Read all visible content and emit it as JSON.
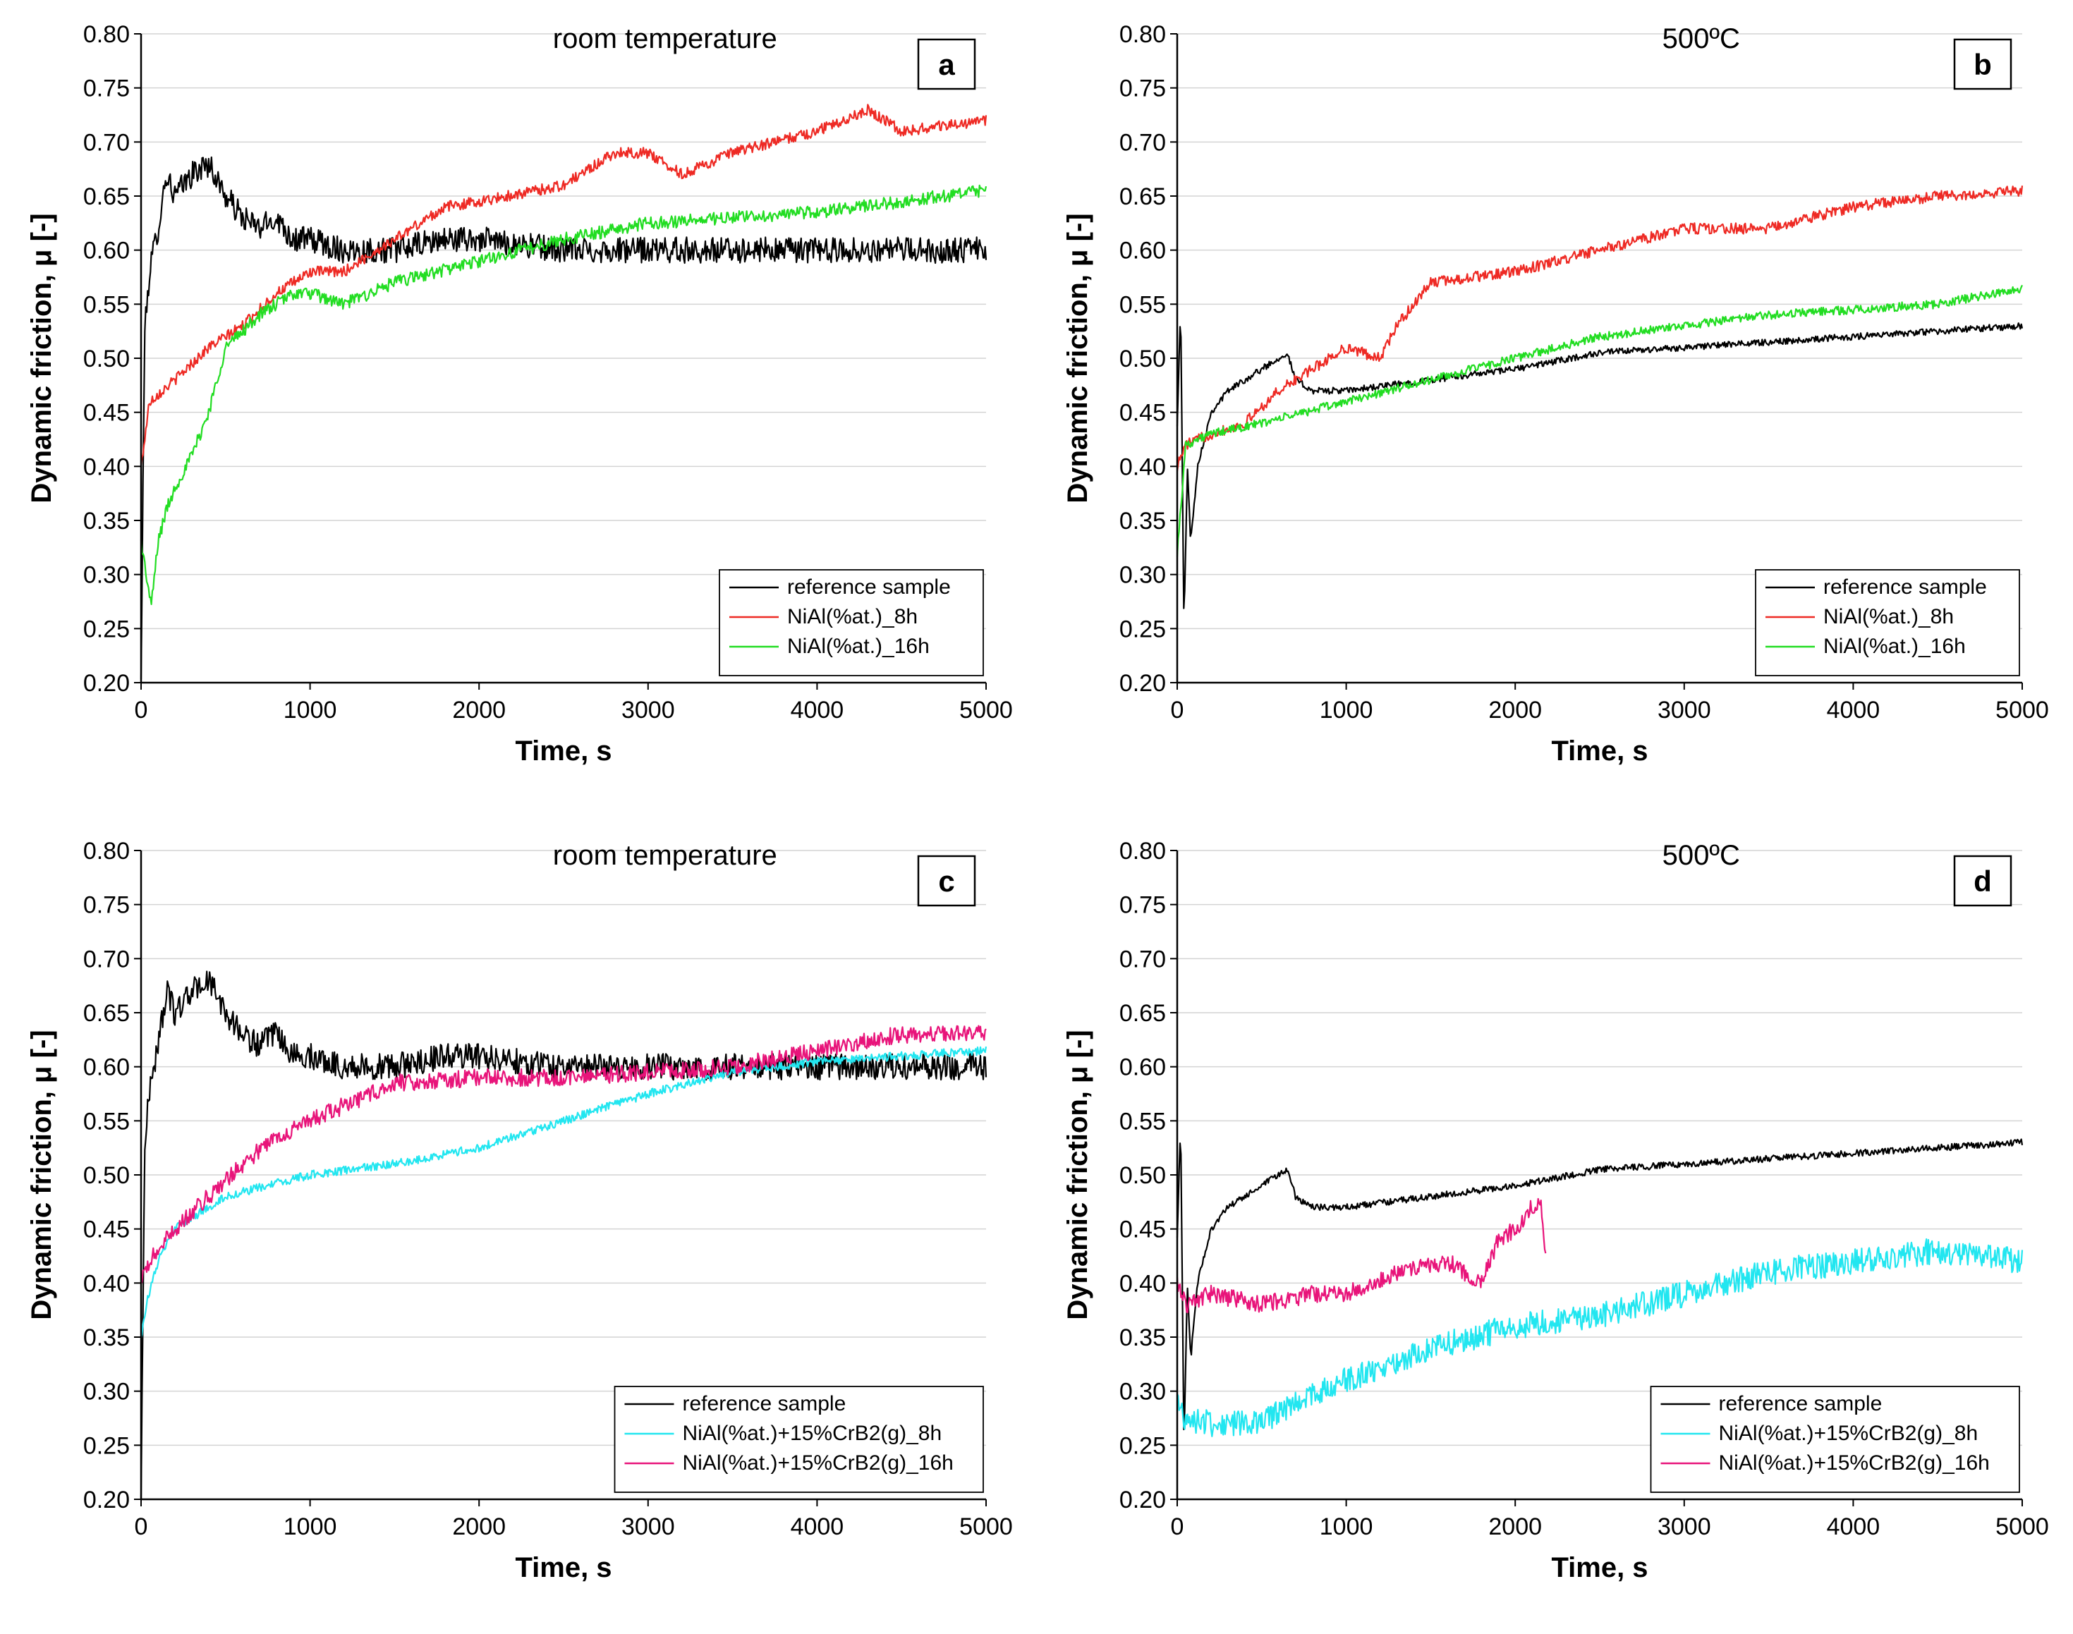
{
  "chart_data": [
    {
      "type": "line",
      "panel": "a",
      "title": "room temperature",
      "xlabel": "Time, s",
      "ylabel": "Dynamic friction, μ [-]",
      "xlim": [
        0,
        5000
      ],
      "ylim": [
        0.2,
        0.8
      ],
      "xticks": [
        "0",
        "1000",
        "2000",
        "3000",
        "4000",
        "5000"
      ],
      "yticks": [
        "0.20",
        "0.25",
        "0.30",
        "0.35",
        "0.40",
        "0.45",
        "0.50",
        "0.55",
        "0.60",
        "0.65",
        "0.70",
        "0.75",
        "0.80"
      ],
      "grid": "horizontal",
      "legend_position": "bottom-right",
      "series": [
        {
          "name": "reference sample",
          "color": "#000000",
          "noise": 0.012,
          "x": [
            0,
            20,
            50,
            100,
            150,
            200,
            300,
            400,
            500,
            600,
            700,
            800,
            900,
            1000,
            1200,
            1500,
            1800,
            2000,
            2500,
            3000,
            3500,
            4000,
            4500,
            5000
          ],
          "y": [
            0.2,
            0.52,
            0.58,
            0.62,
            0.67,
            0.65,
            0.67,
            0.68,
            0.65,
            0.63,
            0.62,
            0.63,
            0.61,
            0.61,
            0.6,
            0.6,
            0.61,
            0.61,
            0.6,
            0.6,
            0.6,
            0.6,
            0.6,
            0.6
          ]
        },
        {
          "name": "NiAl(%at.)_8h",
          "color": "#ee2a24",
          "noise": 0.005,
          "x": [
            0,
            50,
            200,
            400,
            600,
            800,
            1000,
            1200,
            1500,
            1800,
            2000,
            2500,
            2800,
            3000,
            3200,
            3500,
            4000,
            4300,
            4500,
            5000
          ],
          "y": [
            0.4,
            0.46,
            0.48,
            0.51,
            0.53,
            0.56,
            0.58,
            0.58,
            0.61,
            0.64,
            0.645,
            0.66,
            0.69,
            0.69,
            0.67,
            0.69,
            0.71,
            0.73,
            0.71,
            0.72
          ]
        },
        {
          "name": "NiAl(%at.)_16h",
          "color": "#22dd22",
          "noise": 0.006,
          "x": [
            0,
            30,
            60,
            100,
            150,
            200,
            300,
            400,
            500,
            700,
            900,
            1000,
            1200,
            1500,
            2000,
            2500,
            3000,
            3500,
            4000,
            4500,
            5000
          ],
          "y": [
            0.33,
            0.3,
            0.27,
            0.33,
            0.36,
            0.38,
            0.41,
            0.45,
            0.51,
            0.54,
            0.56,
            0.56,
            0.55,
            0.57,
            0.59,
            0.61,
            0.625,
            0.63,
            0.635,
            0.645,
            0.655
          ]
        }
      ]
    },
    {
      "type": "line",
      "panel": "b",
      "title": "500ºC",
      "xlabel": "Time, s",
      "ylabel": "Dynamic friction, μ [-]",
      "xlim": [
        0,
        5000
      ],
      "ylim": [
        0.2,
        0.8
      ],
      "xticks": [
        "0",
        "1000",
        "2000",
        "3000",
        "4000",
        "5000"
      ],
      "yticks": [
        "0.20",
        "0.25",
        "0.30",
        "0.35",
        "0.40",
        "0.45",
        "0.50",
        "0.55",
        "0.60",
        "0.65",
        "0.70",
        "0.75",
        "0.80"
      ],
      "grid": "horizontal",
      "legend_position": "bottom-right",
      "series": [
        {
          "name": "reference sample",
          "color": "#000000",
          "noise": 0.003,
          "x": [
            0,
            20,
            40,
            60,
            80,
            120,
            200,
            300,
            400,
            500,
            600,
            650,
            700,
            800,
            1000,
            1500,
            2000,
            2500,
            3000,
            3500,
            4000,
            4500,
            5000
          ],
          "y": [
            0.44,
            0.55,
            0.25,
            0.4,
            0.33,
            0.4,
            0.45,
            0.47,
            0.48,
            0.49,
            0.5,
            0.505,
            0.48,
            0.47,
            0.47,
            0.48,
            0.49,
            0.505,
            0.51,
            0.515,
            0.52,
            0.525,
            0.53
          ]
        },
        {
          "name": "NiAl(%at.)_8h",
          "color": "#ee2a24",
          "noise": 0.005,
          "x": [
            0,
            50,
            200,
            400,
            600,
            800,
            1000,
            1200,
            1300,
            1500,
            2000,
            2500,
            3000,
            3500,
            4000,
            4500,
            5000
          ],
          "y": [
            0.4,
            0.42,
            0.43,
            0.44,
            0.47,
            0.49,
            0.51,
            0.5,
            0.53,
            0.57,
            0.58,
            0.6,
            0.62,
            0.62,
            0.64,
            0.65,
            0.655
          ]
        },
        {
          "name": "NiAl(%at.)_16h",
          "color": "#22dd22",
          "noise": 0.004,
          "x": [
            0,
            50,
            200,
            500,
            1000,
            1500,
            2000,
            2500,
            3000,
            3500,
            4000,
            4500,
            5000
          ],
          "y": [
            0.32,
            0.42,
            0.43,
            0.44,
            0.46,
            0.48,
            0.5,
            0.52,
            0.53,
            0.54,
            0.545,
            0.55,
            0.565
          ]
        }
      ]
    },
    {
      "type": "line",
      "panel": "c",
      "title": "room temperature",
      "xlabel": "Time, s",
      "ylabel": "Dynamic friction, μ [-]",
      "xlim": [
        0,
        5000
      ],
      "ylim": [
        0.2,
        0.8
      ],
      "xticks": [
        "0",
        "1000",
        "2000",
        "3000",
        "4000",
        "5000"
      ],
      "yticks": [
        "0.20",
        "0.25",
        "0.30",
        "0.35",
        "0.40",
        "0.45",
        "0.50",
        "0.55",
        "0.60",
        "0.65",
        "0.70",
        "0.75",
        "0.80"
      ],
      "grid": "horizontal",
      "legend_position": "bottom-right",
      "series": [
        {
          "name": "reference sample",
          "color": "#000000",
          "noise": 0.012,
          "x": [
            0,
            20,
            50,
            100,
            150,
            200,
            300,
            400,
            500,
            600,
            700,
            800,
            900,
            1000,
            1200,
            1500,
            1800,
            2000,
            2500,
            3000,
            3500,
            4000,
            4500,
            5000
          ],
          "y": [
            0.2,
            0.52,
            0.58,
            0.62,
            0.67,
            0.65,
            0.67,
            0.68,
            0.65,
            0.63,
            0.62,
            0.63,
            0.61,
            0.61,
            0.6,
            0.6,
            0.61,
            0.61,
            0.6,
            0.6,
            0.6,
            0.6,
            0.6,
            0.6
          ]
        },
        {
          "name": "NiAl(%at.)+15%CrB2(g)_8h",
          "color": "#22e6f0",
          "noise": 0.004,
          "x": [
            0,
            30,
            100,
            200,
            500,
            1000,
            1500,
            2000,
            2500,
            3000,
            3500,
            4000,
            4500,
            5000
          ],
          "y": [
            0.35,
            0.38,
            0.42,
            0.45,
            0.48,
            0.5,
            0.51,
            0.525,
            0.55,
            0.575,
            0.595,
            0.605,
            0.61,
            0.615
          ]
        },
        {
          "name": "NiAl(%at.)+15%CrB2(g)_16h",
          "color": "#e8147a",
          "noise": 0.008,
          "x": [
            0,
            50,
            200,
            400,
            600,
            800,
            1000,
            1500,
            2000,
            2500,
            3000,
            3500,
            4000,
            4500,
            5000
          ],
          "y": [
            0.4,
            0.42,
            0.45,
            0.48,
            0.51,
            0.535,
            0.55,
            0.585,
            0.59,
            0.59,
            0.595,
            0.6,
            0.615,
            0.63,
            0.63
          ]
        }
      ]
    },
    {
      "type": "line",
      "panel": "d",
      "title": "500ºC",
      "xlabel": "Time, s",
      "ylabel": "Dynamic friction, μ [-]",
      "xlim": [
        0,
        5000
      ],
      "ylim": [
        0.2,
        0.8
      ],
      "xticks": [
        "0",
        "1000",
        "2000",
        "3000",
        "4000",
        "5000"
      ],
      "yticks": [
        "0.20",
        "0.25",
        "0.30",
        "0.35",
        "0.40",
        "0.45",
        "0.50",
        "0.55",
        "0.60",
        "0.65",
        "0.70",
        "0.75",
        "0.80"
      ],
      "grid": "horizontal",
      "legend_position": "bottom-right",
      "series": [
        {
          "name": "reference sample",
          "color": "#000000",
          "noise": 0.003,
          "x": [
            0,
            20,
            40,
            60,
            80,
            120,
            200,
            300,
            400,
            500,
            600,
            650,
            700,
            800,
            1000,
            1500,
            2000,
            2500,
            3000,
            3500,
            4000,
            4500,
            5000
          ],
          "y": [
            0.44,
            0.55,
            0.25,
            0.4,
            0.33,
            0.4,
            0.45,
            0.47,
            0.48,
            0.49,
            0.5,
            0.505,
            0.48,
            0.47,
            0.47,
            0.48,
            0.49,
            0.505,
            0.51,
            0.515,
            0.52,
            0.525,
            0.53
          ]
        },
        {
          "name": "NiAl(%at.)+15%CrB2(g)_8h",
          "color": "#22e6f0",
          "noise": 0.012,
          "x": [
            0,
            50,
            200,
            500,
            700,
            1000,
            1500,
            2000,
            2500,
            3000,
            3500,
            4000,
            4500,
            5000
          ],
          "y": [
            0.29,
            0.275,
            0.27,
            0.27,
            0.29,
            0.31,
            0.34,
            0.36,
            0.37,
            0.39,
            0.41,
            0.42,
            0.43,
            0.42
          ]
        },
        {
          "name": "NiAl(%at.)+15%CrB2(g)_16h",
          "color": "#e8147a",
          "noise": 0.008,
          "x": [
            0,
            50,
            200,
            500,
            800,
            1000,
            1300,
            1600,
            1800,
            1900,
            2000,
            2100,
            2150,
            2180
          ],
          "y": [
            0.4,
            0.38,
            0.39,
            0.38,
            0.39,
            0.39,
            0.41,
            0.42,
            0.4,
            0.44,
            0.45,
            0.47,
            0.48,
            0.42
          ]
        }
      ]
    }
  ]
}
